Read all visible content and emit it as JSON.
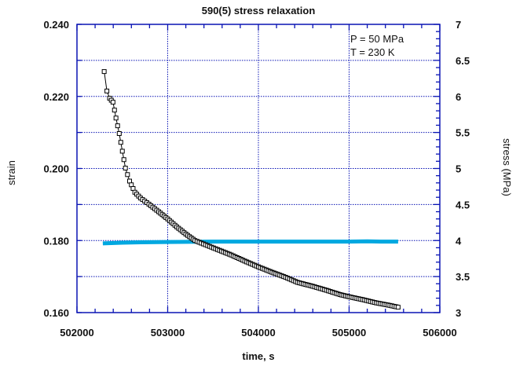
{
  "chart_data": {
    "type": "line",
    "title": "590(5) stress relaxation",
    "xlabel": "time, s",
    "ylabel": "strain",
    "y2label": "stress (MPa)",
    "xlim": [
      502000,
      506000
    ],
    "ylim": [
      0.16,
      0.24
    ],
    "y2lim": [
      3,
      7
    ],
    "grid": true,
    "x_ticks": [
      "502000",
      "503000",
      "504000",
      "505000",
      "506000"
    ],
    "x_tick_values": [
      502000,
      503000,
      504000,
      505000,
      506000
    ],
    "y_ticks": [
      "0.160",
      "0.180",
      "0.200",
      "0.220",
      "0.240"
    ],
    "y_tick_values": [
      0.16,
      0.18,
      0.2,
      0.22,
      0.24
    ],
    "y2_ticks": [
      "3",
      "3.5",
      "4",
      "4.5",
      "5",
      "5.5",
      "6",
      "6.5",
      "7"
    ],
    "y2_tick_values": [
      3,
      3.5,
      4,
      4.5,
      5,
      5.5,
      6,
      6.5,
      7
    ],
    "annotations": [
      "P = 50 MPa",
      "T = 230 K"
    ],
    "series": [
      {
        "name": "strain",
        "axis": "left",
        "color": "#000000",
        "marker": "square",
        "points": [
          [
            502300,
            0.2269
          ],
          [
            502330,
            0.2215
          ],
          [
            502360,
            0.2195
          ],
          [
            502397,
            0.2184
          ],
          [
            502430,
            0.214
          ],
          [
            502466,
            0.2097
          ],
          [
            502500,
            0.2048
          ],
          [
            502534,
            0.2001
          ],
          [
            502580,
            0.1965
          ],
          [
            502638,
            0.1934
          ],
          [
            502700,
            0.1918
          ],
          [
            502793,
            0.1901
          ],
          [
            502900,
            0.188
          ],
          [
            503000,
            0.186
          ],
          [
            503100,
            0.1838
          ],
          [
            503200,
            0.1818
          ],
          [
            503300,
            0.18
          ],
          [
            503440,
            0.1786
          ],
          [
            503550,
            0.1775
          ],
          [
            503700,
            0.176
          ],
          [
            503850,
            0.1743
          ],
          [
            504000,
            0.1727
          ],
          [
            504150,
            0.1712
          ],
          [
            504300,
            0.1698
          ],
          [
            504430,
            0.1684
          ],
          [
            504600,
            0.1673
          ],
          [
            504750,
            0.1662
          ],
          [
            504900,
            0.165
          ],
          [
            505000,
            0.1644
          ],
          [
            505150,
            0.1636
          ],
          [
            505300,
            0.1627
          ],
          [
            505450,
            0.162
          ],
          [
            505540,
            0.1615
          ]
        ]
      },
      {
        "name": "stress",
        "axis": "right",
        "color": "#00a8e0",
        "marker": "none",
        "points": [
          [
            502285,
            3.96
          ],
          [
            502500,
            3.97
          ],
          [
            502700,
            3.975
          ],
          [
            503000,
            3.98
          ],
          [
            503500,
            3.985
          ],
          [
            504000,
            3.985
          ],
          [
            504500,
            3.985
          ],
          [
            505000,
            3.985
          ],
          [
            505200,
            3.99
          ],
          [
            505350,
            3.985
          ],
          [
            505540,
            3.985
          ]
        ]
      }
    ]
  }
}
